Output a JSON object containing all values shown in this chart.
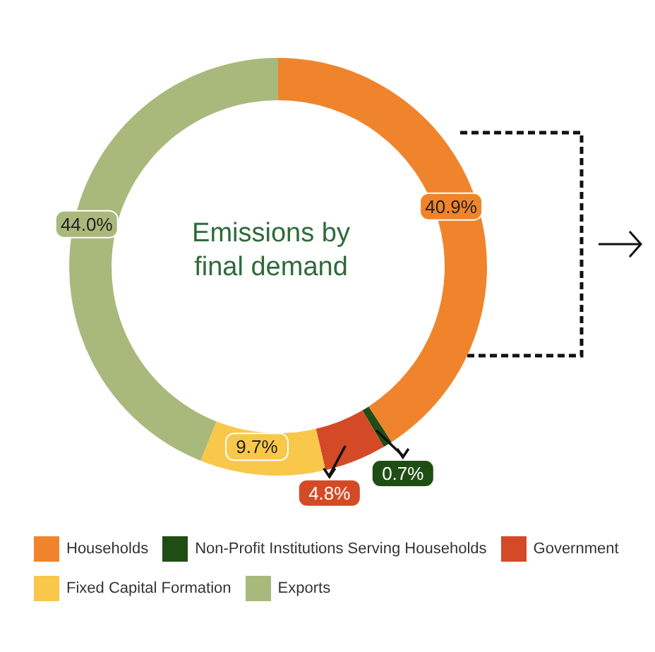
{
  "chart_data": {
    "type": "donut",
    "title": "Emissions by final demand",
    "categories": [
      "Households",
      "Non-Profit Institutions Serving Households",
      "Government",
      "Fixed Capital Formation",
      "Exports"
    ],
    "values": [
      40.9,
      0.7,
      4.8,
      9.7,
      44.0
    ],
    "colors": [
      "#f0842c",
      "#1f4d14",
      "#d44a26",
      "#f9c74a",
      "#a9b97c"
    ],
    "value_labels": [
      "40.9%",
      "0.7%",
      "4.8%",
      "9.7%",
      "44.0%"
    ],
    "legend": "bottom"
  }
}
